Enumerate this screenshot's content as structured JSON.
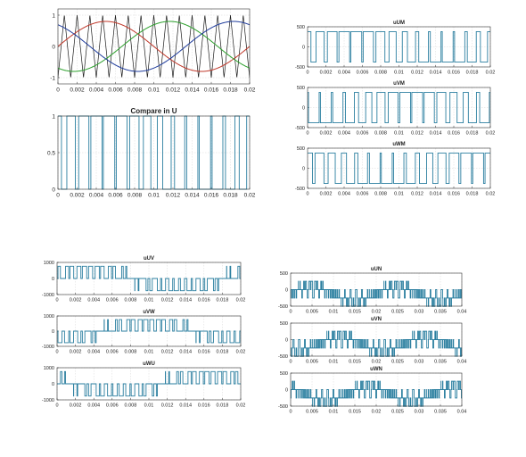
{
  "colors": {
    "trace": "#2b7fa0",
    "carrier": "#1a1a1a",
    "ref_u": "#c0392b",
    "ref_v": "#2ca02c",
    "ref_w": "#1f3c9c",
    "grid": "#d8d8d8",
    "axis": "#333333",
    "text": "#222222"
  },
  "chart_data": [
    {
      "id": "spwm-modulation",
      "type": "line",
      "title": "",
      "xlabel": "",
      "ylabel": "",
      "xlim": [
        0,
        0.02
      ],
      "ylim": [
        -1.2,
        1.2
      ],
      "x_ticks": [
        "0",
        "0.002",
        "0.004",
        "0.006",
        "0.008",
        "0.01",
        "0.012",
        "0.014",
        "0.016",
        "0.018",
        "0.02"
      ],
      "y_ticks": [
        "-1",
        "0",
        "1"
      ],
      "grid": true,
      "carrier": {
        "shape": "triangle",
        "frequency_hz": 750,
        "amplitude": 1
      },
      "series": [
        {
          "color": "red",
          "shape": "sine",
          "frequency_hz": 50,
          "amplitude": 0.8,
          "phase_deg": 0
        },
        {
          "color": "green",
          "shape": "sine",
          "frequency_hz": 50,
          "amplitude": 0.8,
          "phase_deg": -120
        },
        {
          "color": "blue",
          "shape": "sine",
          "frequency_hz": 50,
          "amplitude": 0.8,
          "phase_deg": 120
        }
      ]
    },
    {
      "id": "compare-u",
      "type": "line",
      "title": "Compare in U",
      "xlim": [
        0,
        0.02
      ],
      "ylim": [
        0,
        1
      ],
      "x_ticks": [
        "0",
        "0.002",
        "0.004",
        "0.006",
        "0.008",
        "0.01",
        "0.012",
        "0.014",
        "0.016",
        "0.018",
        "0.02"
      ],
      "y_ticks": [
        "0",
        "0.5",
        "1"
      ],
      "grid": true,
      "signal": {
        "kind": "pwm",
        "f_ref_hz": 50,
        "f_carrier_hz": 750,
        "amplitude": 0.8,
        "phase_deg": 0,
        "low": 0,
        "high": 1
      }
    },
    {
      "id": "uUM",
      "type": "line",
      "title": "uUM",
      "xlim": [
        0,
        0.02
      ],
      "ylim": [
        -500,
        500
      ],
      "x_ticks": [
        "0",
        "0.002",
        "0.004",
        "0.006",
        "0.008",
        "0.01",
        "0.012",
        "0.014",
        "0.016",
        "0.018",
        "0.02"
      ],
      "y_ticks": [
        "-500",
        "0",
        "500"
      ],
      "grid": true,
      "signal": {
        "kind": "pwm",
        "f_ref_hz": 50,
        "f_carrier_hz": 750,
        "amplitude": 0.8,
        "phase_deg": 0,
        "low": -380,
        "high": 380
      }
    },
    {
      "id": "uVM",
      "type": "line",
      "title": "uVM",
      "xlim": [
        0,
        0.02
      ],
      "ylim": [
        -500,
        500
      ],
      "x_ticks": [
        "0",
        "0.002",
        "0.004",
        "0.006",
        "0.008",
        "0.01",
        "0.012",
        "0.014",
        "0.016",
        "0.018",
        "0.02"
      ],
      "y_ticks": [
        "-500",
        "0",
        "500"
      ],
      "grid": true,
      "signal": {
        "kind": "pwm",
        "f_ref_hz": 50,
        "f_carrier_hz": 750,
        "amplitude": 0.8,
        "phase_deg": -120,
        "low": -380,
        "high": 380
      }
    },
    {
      "id": "uWM",
      "type": "line",
      "title": "uWM",
      "xlim": [
        0,
        0.02
      ],
      "ylim": [
        -500,
        500
      ],
      "x_ticks": [
        "0",
        "0.002",
        "0.004",
        "0.006",
        "0.008",
        "0.01",
        "0.012",
        "0.014",
        "0.016",
        "0.018",
        "0.02"
      ],
      "y_ticks": [
        "-500",
        "0",
        "500"
      ],
      "grid": true,
      "signal": {
        "kind": "pwm",
        "f_ref_hz": 50,
        "f_carrier_hz": 750,
        "amplitude": 0.8,
        "phase_deg": 120,
        "low": -380,
        "high": 380
      }
    },
    {
      "id": "uUV",
      "type": "line",
      "title": "uUV",
      "xlim": [
        0,
        0.02
      ],
      "ylim": [
        -1000,
        1000
      ],
      "x_ticks": [
        "0",
        "0.002",
        "0.004",
        "0.006",
        "0.008",
        "0.01",
        "0.012",
        "0.014",
        "0.016",
        "0.018",
        "0.02"
      ],
      "y_ticks": [
        "-1000",
        "0",
        "1000"
      ],
      "grid": true,
      "signal": {
        "kind": "line",
        "f_ref_hz": 50,
        "f_carrier_hz": 750,
        "amplitude": 0.8,
        "phase_a_deg": 0,
        "phase_b_deg": -120,
        "vdc_half": 380
      }
    },
    {
      "id": "uVW",
      "type": "line",
      "title": "uVW",
      "xlim": [
        0,
        0.02
      ],
      "ylim": [
        -1000,
        1000
      ],
      "x_ticks": [
        "0",
        "0.002",
        "0.004",
        "0.006",
        "0.008",
        "0.01",
        "0.012",
        "0.014",
        "0.016",
        "0.018",
        "0.02"
      ],
      "y_ticks": [
        "-1000",
        "0",
        "1000"
      ],
      "grid": true,
      "signal": {
        "kind": "line",
        "f_ref_hz": 50,
        "f_carrier_hz": 750,
        "amplitude": 0.8,
        "phase_a_deg": -120,
        "phase_b_deg": 120,
        "vdc_half": 380
      }
    },
    {
      "id": "uWU",
      "type": "line",
      "title": "uWU",
      "xlim": [
        0,
        0.02
      ],
      "ylim": [
        -1000,
        1000
      ],
      "x_ticks": [
        "0",
        "0.002",
        "0.004",
        "0.006",
        "0.008",
        "0.01",
        "0.012",
        "0.014",
        "0.016",
        "0.018",
        "0.02"
      ],
      "y_ticks": [
        "-1000",
        "0",
        "1000"
      ],
      "grid": true,
      "signal": {
        "kind": "line",
        "f_ref_hz": 50,
        "f_carrier_hz": 750,
        "amplitude": 0.8,
        "phase_a_deg": 120,
        "phase_b_deg": 0,
        "vdc_half": 380
      }
    },
    {
      "id": "uUN",
      "type": "line",
      "title": "uUN",
      "xlim": [
        0,
        0.04
      ],
      "ylim": [
        -500,
        500
      ],
      "x_ticks": [
        "0",
        "0.005",
        "0.01",
        "0.015",
        "0.02",
        "0.025",
        "0.03",
        "0.035",
        "0.04"
      ],
      "y_ticks": [
        "-500",
        "0",
        "500"
      ],
      "grid": true,
      "signal": {
        "kind": "phase",
        "f_ref_hz": 50,
        "f_carrier_hz": 750,
        "amplitude": 0.8,
        "phase_deg": 0,
        "vdc_half": 380
      }
    },
    {
      "id": "uVN",
      "type": "line",
      "title": "uVN",
      "xlim": [
        0,
        0.04
      ],
      "ylim": [
        -500,
        500
      ],
      "x_ticks": [
        "0",
        "0.005",
        "0.01",
        "0.015",
        "0.02",
        "0.025",
        "0.03",
        "0.035",
        "0.04"
      ],
      "y_ticks": [
        "-500",
        "0",
        "500"
      ],
      "grid": true,
      "signal": {
        "kind": "phase",
        "f_ref_hz": 50,
        "f_carrier_hz": 750,
        "amplitude": 0.8,
        "phase_deg": -120,
        "vdc_half": 380
      }
    },
    {
      "id": "uWN",
      "type": "line",
      "title": "uWN",
      "xlim": [
        0,
        0.04
      ],
      "ylim": [
        -500,
        500
      ],
      "x_ticks": [
        "0",
        "0.005",
        "0.01",
        "0.015",
        "0.02",
        "0.025",
        "0.03",
        "0.035",
        "0.04"
      ],
      "y_ticks": [
        "-500",
        "0",
        "500"
      ],
      "grid": true,
      "signal": {
        "kind": "phase",
        "f_ref_hz": 50,
        "f_carrier_hz": 750,
        "amplitude": 0.8,
        "phase_deg": 120,
        "vdc_half": 380
      }
    }
  ]
}
